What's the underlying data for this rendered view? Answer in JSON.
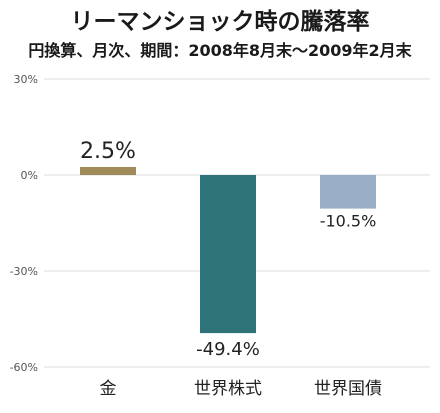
{
  "chart_data": {
    "type": "bar",
    "title": "リーマンショック時の騰落率",
    "subtitle": "円換算、月次、期間：2008年8月末〜2009年2月末",
    "categories": [
      "金",
      "世界株式",
      "世界国債"
    ],
    "values": [
      2.5,
      -49.4,
      -10.5
    ],
    "value_labels": [
      "2.5%",
      "-49.4%",
      "-10.5%"
    ],
    "colors": [
      "#a08c5a",
      "#2e7378",
      "#98aec6"
    ],
    "ylim": [
      -60,
      30
    ],
    "yticks": [
      30,
      0,
      -30,
      -60
    ],
    "ytick_labels": [
      "30%",
      "0%",
      "-30%",
      "-60%"
    ],
    "grid": true,
    "xlabel": "",
    "ylabel": ""
  }
}
